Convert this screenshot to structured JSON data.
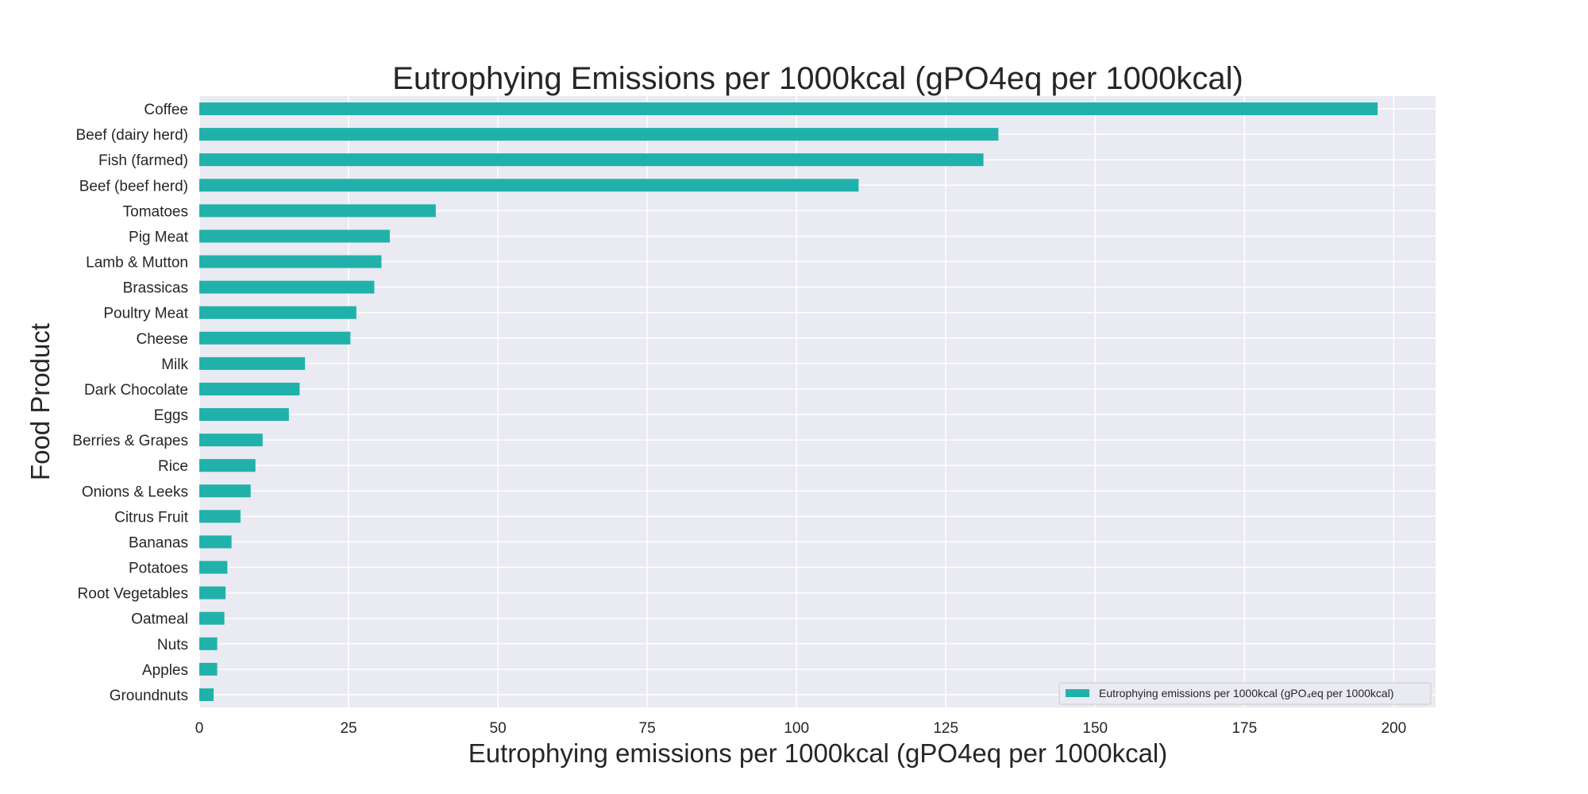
{
  "chart_data": {
    "type": "bar",
    "orientation": "horizontal",
    "title": "Eutrophying Emissions per 1000kcal (gPO4eq per 1000kcal)",
    "xlabel": "Eutrophying emissions per 1000kcal (gPO4eq per 1000kcal)",
    "ylabel": "Food Product",
    "xlim": [
      0,
      207
    ],
    "xticks": [
      0,
      25,
      50,
      75,
      100,
      125,
      150,
      175,
      200
    ],
    "grid": true,
    "legend_position": "lower-right",
    "legend": [
      "Eutrophying emissions per 1000kcal (gPO₄eq per 1000kcal)"
    ],
    "series": [
      {
        "name": "Eutrophying emissions per 1000kcal (gPO₄eq per 1000kcal)",
        "color": "#20b2aa"
      }
    ],
    "categories": [
      "Coffee",
      "Beef (dairy herd)",
      "Fish (farmed)",
      "Beef (beef herd)",
      "Tomatoes",
      "Pig Meat",
      "Lamb & Mutton",
      "Brassicas",
      "Poultry Meat",
      "Cheese",
      "Milk",
      "Dark Chocolate",
      "Eggs",
      "Berries & Grapes",
      "Rice",
      "Onions & Leeks",
      "Citrus Fruit",
      "Bananas",
      "Potatoes",
      "Root Vegetables",
      "Oatmeal",
      "Nuts",
      "Apples",
      "Groundnuts"
    ],
    "values": [
      197.3,
      133.8,
      131.3,
      110.4,
      39.6,
      31.9,
      30.5,
      29.3,
      26.3,
      25.3,
      17.7,
      16.8,
      15.0,
      10.6,
      9.4,
      8.6,
      6.9,
      5.4,
      4.7,
      4.4,
      4.2,
      3.0,
      3.0,
      2.4
    ]
  },
  "colors": {
    "plot_background": "#eaeaf2",
    "grid": "#ffffff",
    "text": "#262626"
  }
}
